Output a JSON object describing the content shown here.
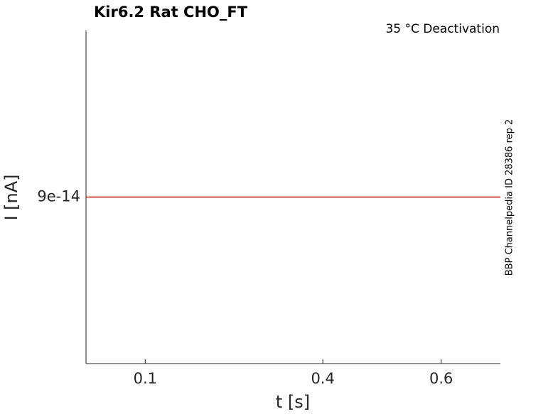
{
  "chart_data": {
    "type": "line",
    "title": "Kir6.2  Rat  CHO_FT",
    "subtitle": "35 °C  Deactivation",
    "side_note": "BBP Channelpedia ID 28386 rep 2",
    "x_label": "t [s]",
    "y_label": "I [nA]",
    "x": [
      0,
      0.7
    ],
    "values": [
      9e-14,
      9e-14
    ],
    "color": "#cc0000",
    "xlim": [
      0,
      0.7
    ],
    "xticks": [
      0.1,
      0.4,
      0.6
    ],
    "ylim": [
      0,
      1.8e-13
    ],
    "yticks": [
      {
        "value": 9e-14,
        "label": "9e-14"
      }
    ],
    "grid": false
  }
}
